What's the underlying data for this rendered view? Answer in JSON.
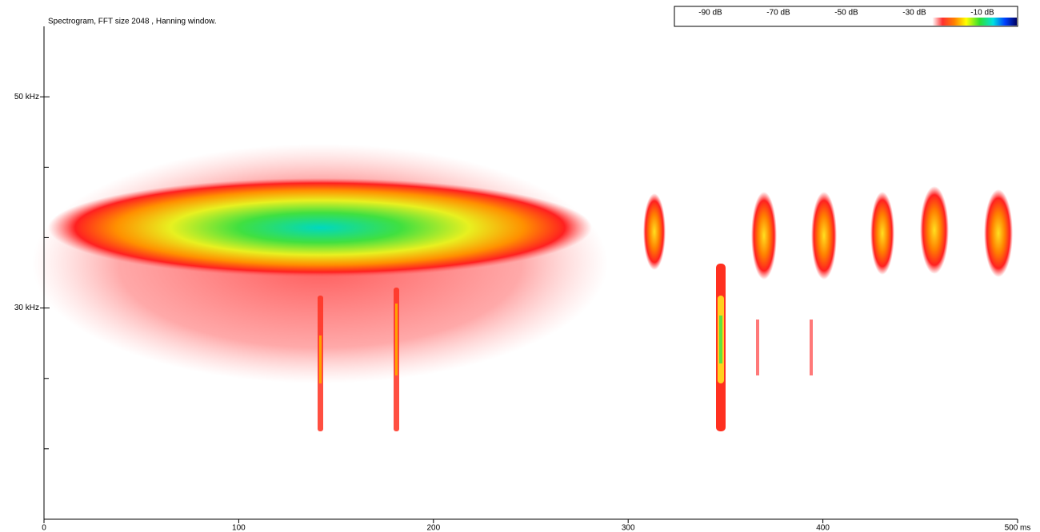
{
  "chart_data": {
    "type": "spectrogram",
    "title": "Spectrogram, FFT size 2048 , Hanning window.",
    "xlim": [
      0,
      500
    ],
    "xticks": [
      0,
      100,
      200,
      300,
      400,
      {
        "value": 500,
        "label": "500 ms"
      }
    ],
    "ylim": [
      10,
      56.67
    ],
    "yticks": [
      {
        "value": 30,
        "label": "30 kHz"
      },
      {
        "value": 50,
        "label": "50 kHz"
      }
    ],
    "yminor_ticks": [
      43.33,
      36.67,
      23.33,
      16.67
    ],
    "colorbar": {
      "labels": [
        "-90 dB",
        "-70 dB",
        "-50 dB",
        "-30 dB",
        "-10 dB"
      ]
    }
  }
}
